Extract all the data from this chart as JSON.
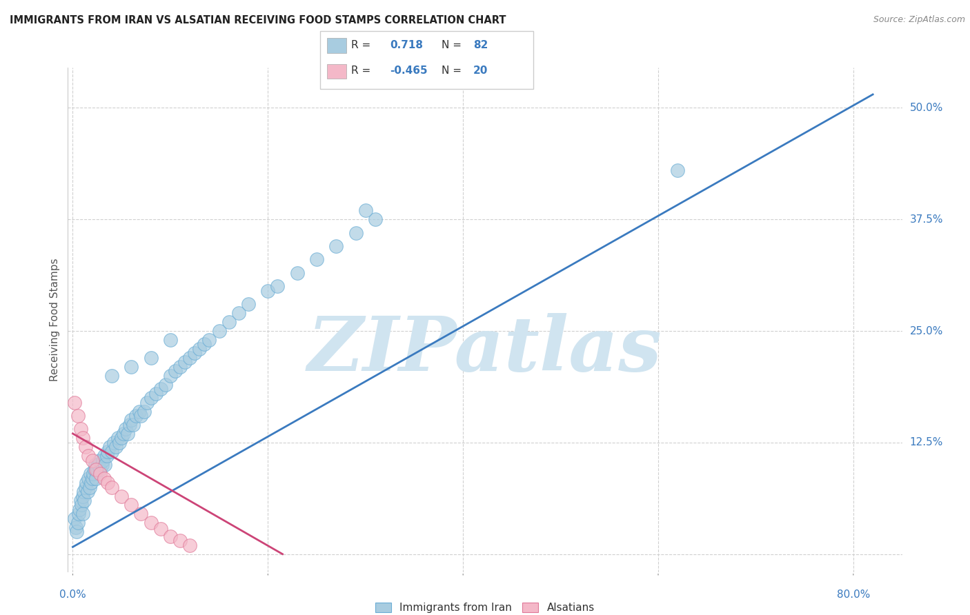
{
  "title": "IMMIGRANTS FROM IRAN VS ALSATIAN RECEIVING FOOD STAMPS CORRELATION CHART",
  "source": "Source: ZipAtlas.com",
  "ylabel": "Receiving Food Stamps",
  "y_ticks": [
    0.0,
    0.125,
    0.25,
    0.375,
    0.5
  ],
  "y_tick_labels": [
    "",
    "12.5%",
    "25.0%",
    "37.5%",
    "50.0%"
  ],
  "x_ticks": [
    0.0,
    0.2,
    0.4,
    0.6,
    0.8
  ],
  "x_tick_labels": [
    "0.0%",
    "",
    "",
    "",
    "80.0%"
  ],
  "xlim": [
    -0.005,
    0.85
  ],
  "ylim": [
    -0.02,
    0.545
  ],
  "blue_R": "0.718",
  "blue_N": "82",
  "pink_R": "-0.465",
  "pink_N": "20",
  "blue_color": "#a8cce0",
  "blue_edge_color": "#6aadd5",
  "pink_color": "#f4b8c8",
  "pink_edge_color": "#e07898",
  "blue_line_color": "#3a7abf",
  "pink_line_color": "#cc4477",
  "watermark": "ZIPatlas",
  "watermark_color": "#d0e4f0",
  "background_color": "#ffffff",
  "grid_color": "#d0d0d0",
  "blue_scatter_x": [
    0.002,
    0.003,
    0.004,
    0.005,
    0.006,
    0.007,
    0.008,
    0.009,
    0.01,
    0.01,
    0.011,
    0.012,
    0.013,
    0.014,
    0.015,
    0.016,
    0.017,
    0.018,
    0.019,
    0.02,
    0.021,
    0.022,
    0.023,
    0.024,
    0.025,
    0.026,
    0.027,
    0.028,
    0.03,
    0.031,
    0.032,
    0.033,
    0.035,
    0.036,
    0.038,
    0.04,
    0.042,
    0.044,
    0.046,
    0.048,
    0.05,
    0.052,
    0.054,
    0.056,
    0.058,
    0.06,
    0.062,
    0.065,
    0.068,
    0.07,
    0.073,
    0.076,
    0.08,
    0.085,
    0.09,
    0.095,
    0.1,
    0.105,
    0.11,
    0.115,
    0.12,
    0.125,
    0.13,
    0.135,
    0.14,
    0.15,
    0.16,
    0.17,
    0.18,
    0.2,
    0.21,
    0.23,
    0.25,
    0.27,
    0.29,
    0.31,
    0.04,
    0.06,
    0.08,
    0.1,
    0.62,
    0.3
  ],
  "blue_scatter_y": [
    0.04,
    0.03,
    0.025,
    0.035,
    0.045,
    0.05,
    0.06,
    0.055,
    0.065,
    0.045,
    0.07,
    0.06,
    0.075,
    0.08,
    0.07,
    0.085,
    0.075,
    0.09,
    0.08,
    0.085,
    0.09,
    0.095,
    0.1,
    0.085,
    0.095,
    0.1,
    0.105,
    0.095,
    0.1,
    0.105,
    0.11,
    0.1,
    0.11,
    0.115,
    0.12,
    0.115,
    0.125,
    0.12,
    0.13,
    0.125,
    0.13,
    0.135,
    0.14,
    0.135,
    0.145,
    0.15,
    0.145,
    0.155,
    0.16,
    0.155,
    0.16,
    0.17,
    0.175,
    0.18,
    0.185,
    0.19,
    0.2,
    0.205,
    0.21,
    0.215,
    0.22,
    0.225,
    0.23,
    0.235,
    0.24,
    0.25,
    0.26,
    0.27,
    0.28,
    0.295,
    0.3,
    0.315,
    0.33,
    0.345,
    0.36,
    0.375,
    0.2,
    0.21,
    0.22,
    0.24,
    0.43,
    0.385
  ],
  "pink_scatter_x": [
    0.002,
    0.005,
    0.008,
    0.01,
    0.013,
    0.016,
    0.02,
    0.024,
    0.028,
    0.032,
    0.036,
    0.04,
    0.05,
    0.06,
    0.07,
    0.08,
    0.09,
    0.1,
    0.11,
    0.12
  ],
  "pink_scatter_y": [
    0.17,
    0.155,
    0.14,
    0.13,
    0.12,
    0.11,
    0.105,
    0.095,
    0.09,
    0.085,
    0.08,
    0.075,
    0.065,
    0.055,
    0.045,
    0.035,
    0.028,
    0.02,
    0.015,
    0.01
  ],
  "blue_line_x0": 0.0,
  "blue_line_y0": 0.008,
  "blue_line_x1": 0.82,
  "blue_line_y1": 0.515,
  "pink_line_x0": 0.0,
  "pink_line_y0": 0.135,
  "pink_line_x1": 0.215,
  "pink_line_y1": 0.0,
  "scatter_size": 200
}
